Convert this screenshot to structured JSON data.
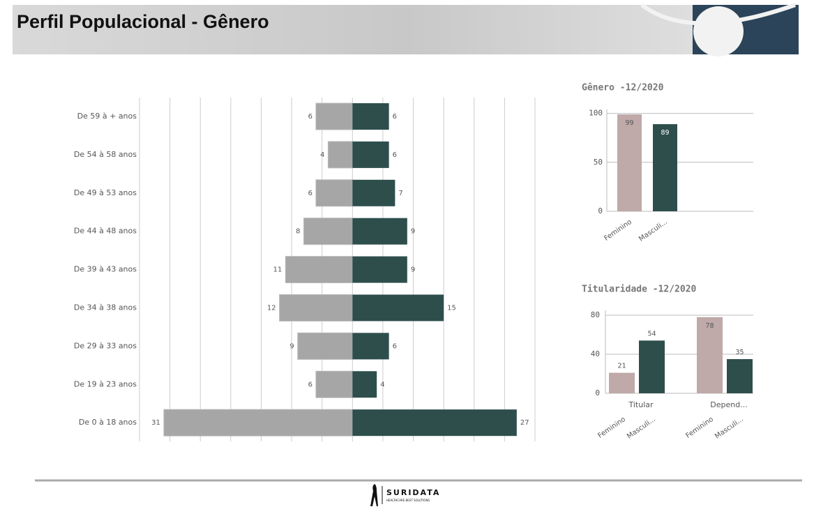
{
  "header": {
    "title": "Perfil Populacional - Gênero"
  },
  "chart_data": [
    {
      "type": "butterfly",
      "categories": [
        "De 59 à + anos",
        "De 54 à 58 anos",
        "De 49 à 53 anos",
        "De 44 à 48 anos",
        "De 39 à 43 anos",
        "De 34 à 38 anos",
        "De 29 à 33 anos",
        "De 19 à 23 anos",
        "De 0 à 18 anos"
      ],
      "series": [
        {
          "color": "#a6a6a6",
          "side": "left",
          "values": [
            6,
            4,
            6,
            8,
            11,
            12,
            9,
            6,
            31
          ]
        },
        {
          "color": "#2e4e4c",
          "side": "right",
          "values": [
            6,
            6,
            7,
            9,
            9,
            15,
            6,
            4,
            27
          ]
        }
      ],
      "xlim": [
        -35,
        30
      ],
      "xticks": [
        -35,
        -30,
        -25,
        -20,
        -15,
        -10,
        -5,
        0,
        5,
        10,
        15,
        20,
        25,
        30
      ],
      "grid": true
    },
    {
      "type": "bar",
      "title": "Gênero -12/2020",
      "categories": [
        "Feminino",
        "Masculi..."
      ],
      "values": [
        99,
        89
      ],
      "colors": [
        "#bfa9a9",
        "#2e4e4c"
      ],
      "ylim": [
        0,
        104
      ],
      "yticks": [
        0,
        50,
        100
      ],
      "grid": true
    },
    {
      "type": "grouped-bar",
      "title": "Titularidade -12/2020",
      "categories": [
        "Titular",
        "Depend..."
      ],
      "series": [
        {
          "name": "Feminino",
          "color": "#bfa9a9",
          "values": [
            21,
            78
          ]
        },
        {
          "name": "Masculi...",
          "color": "#2e4e4c",
          "values": [
            54,
            35
          ]
        }
      ],
      "ylim": [
        0,
        85
      ],
      "yticks": [
        0,
        40,
        80
      ],
      "grid": true
    }
  ],
  "footer": {
    "logo": "SURIDATA",
    "tagline": "HEALTHCARE BEST SOLUTIONS"
  }
}
